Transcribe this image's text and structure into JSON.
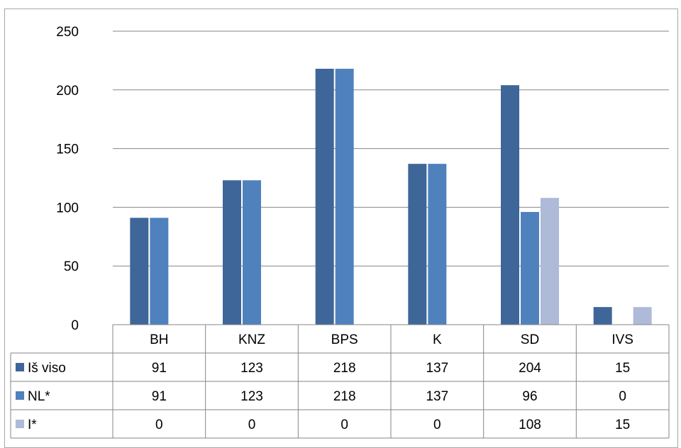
{
  "chart_data": {
    "type": "bar",
    "title": "",
    "xlabel": "",
    "ylabel": "",
    "ylim": [
      0,
      250
    ],
    "yticks": [
      0,
      50,
      100,
      150,
      200,
      250
    ],
    "grid": true,
    "legend": "data-table",
    "categories": [
      "BH",
      "KNZ",
      "BPS",
      "K",
      "SD",
      "IVS"
    ],
    "series": [
      {
        "name": "Iš viso",
        "color": "#3e6699",
        "values": [
          91,
          123,
          218,
          137,
          204,
          15
        ]
      },
      {
        "name": "NL*",
        "color": "#4f81bd",
        "values": [
          91,
          123,
          218,
          137,
          96,
          0
        ]
      },
      {
        "name": "I*",
        "color": "#aebad8",
        "values": [
          0,
          0,
          0,
          0,
          108,
          15
        ]
      }
    ]
  }
}
